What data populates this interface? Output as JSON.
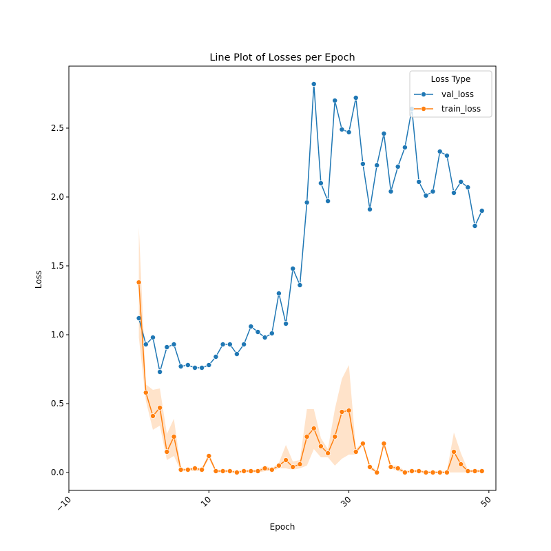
{
  "chart_data": {
    "type": "line",
    "title": "Line Plot of Losses per Epoch",
    "xlabel": "Epoch",
    "ylabel": "Loss",
    "xlim": [
      -10,
      51
    ],
    "ylim": [
      -0.13,
      2.95
    ],
    "xticks": [
      -10,
      10,
      30,
      50
    ],
    "xtick_labels": [
      "−10",
      "10",
      "30",
      "50"
    ],
    "yticks": [
      0.0,
      0.5,
      1.0,
      1.5,
      2.0,
      2.5
    ],
    "ytick_labels": [
      "0.0",
      "0.5",
      "1.0",
      "1.5",
      "2.0",
      "2.5"
    ],
    "xtick_rotation": 45,
    "grid": false,
    "legend": {
      "title": "Loss Type",
      "placement": "top-right"
    },
    "x": [
      0,
      1,
      2,
      3,
      4,
      5,
      6,
      7,
      8,
      9,
      10,
      11,
      12,
      13,
      14,
      15,
      16,
      17,
      18,
      19,
      20,
      21,
      22,
      23,
      24,
      25,
      26,
      27,
      28,
      29,
      30,
      31,
      32,
      33,
      34,
      35,
      36,
      37,
      38,
      39,
      40,
      41,
      42,
      43,
      44,
      45,
      46,
      47,
      48,
      49
    ],
    "series": [
      {
        "name": "val_loss",
        "color": "#1f77b4",
        "values": [
          1.12,
          0.93,
          0.98,
          0.73,
          0.91,
          0.93,
          0.77,
          0.78,
          0.76,
          0.76,
          0.78,
          0.84,
          0.93,
          0.93,
          0.86,
          0.93,
          1.06,
          1.02,
          0.98,
          1.01,
          1.3,
          1.08,
          1.48,
          1.36,
          1.96,
          2.82,
          2.1,
          1.97,
          2.7,
          2.49,
          2.47,
          2.72,
          2.24,
          1.91,
          2.23,
          2.46,
          2.04,
          2.22,
          2.36,
          2.64,
          2.11,
          2.01,
          2.04,
          2.33,
          2.3,
          2.03,
          2.11,
          2.07,
          1.79,
          1.9
        ]
      },
      {
        "name": "train_loss",
        "color": "#ff7f0e",
        "values": [
          1.38,
          0.58,
          0.41,
          0.47,
          0.15,
          0.26,
          0.02,
          0.02,
          0.03,
          0.02,
          0.12,
          0.01,
          0.01,
          0.01,
          0.0,
          0.01,
          0.01,
          0.01,
          0.03,
          0.02,
          0.05,
          0.09,
          0.04,
          0.06,
          0.26,
          0.32,
          0.19,
          0.14,
          0.26,
          0.44,
          0.45,
          0.15,
          0.21,
          0.04,
          0.0,
          0.21,
          0.04,
          0.03,
          0.0,
          0.01,
          0.01,
          0.0,
          0.0,
          0.0,
          0.0,
          0.15,
          0.06,
          0.01,
          0.01,
          0.01
        ],
        "ci_lower": [
          0.98,
          0.52,
          0.31,
          0.34,
          0.09,
          0.12,
          0.01,
          0.01,
          0.01,
          0.01,
          0.1,
          0.0,
          0.0,
          0.0,
          0.0,
          0.0,
          0.0,
          0.0,
          0.01,
          0.01,
          0.03,
          0.03,
          0.02,
          0.03,
          0.05,
          0.17,
          0.11,
          0.11,
          0.05,
          0.1,
          0.13,
          0.13,
          0.2,
          0.02,
          0.0,
          0.19,
          0.03,
          0.01,
          0.0,
          0.0,
          0.0,
          0.0,
          0.0,
          0.0,
          0.0,
          0.0,
          0.0,
          0.0,
          0.0,
          0.0
        ],
        "ci_upper": [
          1.78,
          0.64,
          0.6,
          0.61,
          0.28,
          0.39,
          0.03,
          0.03,
          0.04,
          0.03,
          0.14,
          0.02,
          0.02,
          0.02,
          0.01,
          0.02,
          0.02,
          0.02,
          0.05,
          0.03,
          0.07,
          0.2,
          0.08,
          0.09,
          0.46,
          0.46,
          0.25,
          0.17,
          0.46,
          0.68,
          0.78,
          0.17,
          0.22,
          0.06,
          0.01,
          0.23,
          0.05,
          0.05,
          0.01,
          0.02,
          0.02,
          0.01,
          0.01,
          0.01,
          0.01,
          0.29,
          0.14,
          0.02,
          0.02,
          0.02
        ]
      }
    ]
  }
}
